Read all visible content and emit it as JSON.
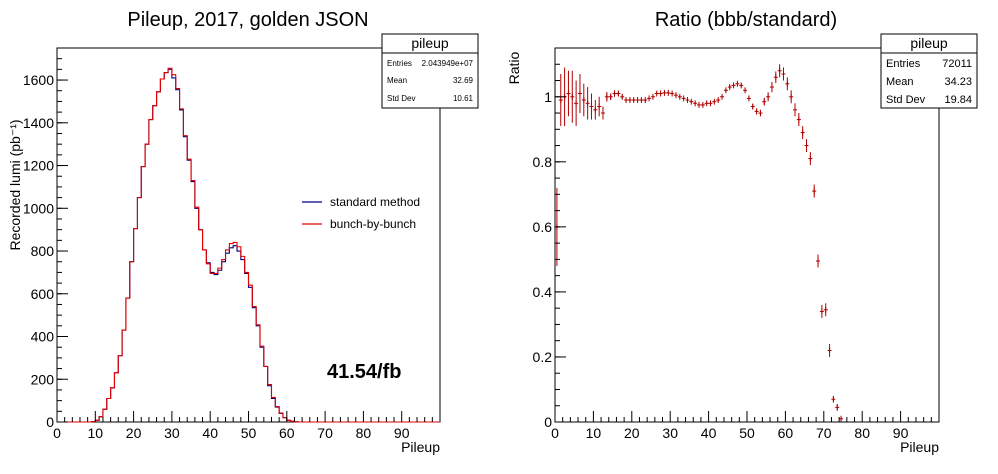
{
  "colors": {
    "standard": "#000080",
    "bbb": "#e00000",
    "ratio": "#b00000",
    "frame": "#000000",
    "background": "#ffffff"
  },
  "chart_data": [
    {
      "type": "histogram",
      "title": "Pileup, 2017, golden JSON",
      "xlabel": "Pileup",
      "ylabel": "Recorded lumi (pb⁻¹)",
      "xlim": [
        0,
        100
      ],
      "ylim": [
        0,
        1750
      ],
      "x_ticks": [
        0,
        10,
        20,
        30,
        40,
        50,
        60,
        70,
        80,
        90
      ],
      "y_ticks": [
        0,
        200,
        400,
        600,
        800,
        1000,
        1200,
        1400,
        1600
      ],
      "bin_width": 1,
      "x_start": 0,
      "series": [
        {
          "name": "standard method",
          "color": "#000080",
          "values": [
            0,
            0,
            0,
            0,
            0,
            0,
            0,
            0,
            0,
            2,
            8,
            25,
            60,
            110,
            160,
            230,
            310,
            430,
            580,
            750,
            905,
            1050,
            1195,
            1300,
            1415,
            1480,
            1545,
            1605,
            1635,
            1650,
            1610,
            1555,
            1460,
            1335,
            1225,
            1125,
            1000,
            900,
            805,
            745,
            700,
            690,
            710,
            750,
            790,
            815,
            825,
            800,
            760,
            695,
            630,
            535,
            450,
            350,
            260,
            170,
            110,
            70,
            40,
            20,
            8,
            3,
            1,
            0,
            0,
            0,
            0,
            0,
            0,
            0,
            0,
            0,
            0,
            0,
            0,
            0,
            0,
            0,
            0,
            0,
            0,
            0,
            0,
            0,
            0,
            0,
            0,
            0,
            0,
            0,
            0,
            0,
            0,
            0,
            0,
            0,
            0,
            0,
            0,
            0
          ]
        },
        {
          "name": "bunch-by-bunch",
          "color": "#e00000",
          "values": [
            0,
            0,
            0,
            0,
            0,
            0,
            0,
            0,
            0,
            2,
            8,
            25,
            60,
            110,
            160,
            230,
            310,
            430,
            580,
            750,
            905,
            1050,
            1195,
            1300,
            1415,
            1480,
            1545,
            1605,
            1635,
            1655,
            1625,
            1560,
            1465,
            1340,
            1230,
            1130,
            1005,
            900,
            805,
            740,
            695,
            695,
            720,
            760,
            805,
            835,
            840,
            820,
            775,
            700,
            640,
            540,
            455,
            355,
            260,
            175,
            115,
            72,
            42,
            20,
            8,
            3,
            1,
            0,
            0,
            0,
            0,
            0,
            0,
            0,
            0,
            0,
            0,
            0,
            0,
            0,
            0,
            0,
            0,
            0,
            0,
            0,
            0,
            0,
            0,
            0,
            0,
            0,
            0,
            0,
            0,
            0,
            0,
            0,
            0,
            0,
            0,
            0,
            0,
            0
          ]
        }
      ],
      "legend": [
        "standard method",
        "bunch-by-bunch"
      ],
      "legend_position": "center-right",
      "annotation": "41.54/fb",
      "stats": {
        "name": "pileup",
        "rows": [
          [
            "Entries",
            "2.043949e+07"
          ],
          [
            "Mean",
            "32.69"
          ],
          [
            "Std Dev",
            "10.61"
          ]
        ]
      }
    },
    {
      "type": "scatter",
      "title": "Ratio (bbb/standard)",
      "xlabel": "Pileup",
      "ylabel": "Ratio",
      "xlim": [
        0,
        100
      ],
      "ylim": [
        0,
        1.15
      ],
      "x_ticks": [
        0,
        10,
        20,
        30,
        40,
        50,
        60,
        70,
        80,
        90
      ],
      "y_ticks": [
        0,
        0.2,
        0.4,
        0.6,
        0.8,
        1
      ],
      "series": [
        {
          "name": "ratio",
          "color": "#b00000",
          "points": [
            {
              "x": 0.5,
              "y": 0.6,
              "err": 0.12
            },
            {
              "x": 1.5,
              "y": 0.99,
              "err": 0.08
            },
            {
              "x": 2.5,
              "y": 1.0,
              "err": 0.09
            },
            {
              "x": 3.5,
              "y": 1.01,
              "err": 0.07
            },
            {
              "x": 4.5,
              "y": 1.0,
              "err": 0.08
            },
            {
              "x": 5.5,
              "y": 0.98,
              "err": 0.07
            },
            {
              "x": 6.5,
              "y": 1.01,
              "err": 0.06
            },
            {
              "x": 7.5,
              "y": 0.99,
              "err": 0.05
            },
            {
              "x": 8.5,
              "y": 0.98,
              "err": 0.05
            },
            {
              "x": 9.5,
              "y": 0.97,
              "err": 0.04
            },
            {
              "x": 10.5,
              "y": 0.96,
              "err": 0.03
            },
            {
              "x": 11.5,
              "y": 0.97,
              "err": 0.03
            },
            {
              "x": 12.5,
              "y": 0.95,
              "err": 0.02
            },
            {
              "x": 13.5,
              "y": 1.0,
              "err": 0.015
            },
            {
              "x": 14.5,
              "y": 1.0,
              "err": 0.01
            },
            {
              "x": 15.5,
              "y": 1.01,
              "err": 0.01
            },
            {
              "x": 16.5,
              "y": 1.01,
              "err": 0.008
            },
            {
              "x": 17.5,
              "y": 1.0,
              "err": 0.006
            },
            {
              "x": 18.5,
              "y": 0.99,
              "err": 0.005
            },
            {
              "x": 19.5,
              "y": 0.99,
              "err": 0.005
            },
            {
              "x": 20.5,
              "y": 0.99,
              "err": 0.004
            },
            {
              "x": 21.5,
              "y": 0.99,
              "err": 0.004
            },
            {
              "x": 22.5,
              "y": 0.99,
              "err": 0.004
            },
            {
              "x": 23.5,
              "y": 0.99,
              "err": 0.004
            },
            {
              "x": 24.5,
              "y": 0.995,
              "err": 0.004
            },
            {
              "x": 25.5,
              "y": 1.0,
              "err": 0.004
            },
            {
              "x": 26.5,
              "y": 1.01,
              "err": 0.004
            },
            {
              "x": 27.5,
              "y": 1.01,
              "err": 0.004
            },
            {
              "x": 28.5,
              "y": 1.012,
              "err": 0.004
            },
            {
              "x": 29.5,
              "y": 1.012,
              "err": 0.004
            },
            {
              "x": 30.5,
              "y": 1.01,
              "err": 0.004
            },
            {
              "x": 31.5,
              "y": 1.005,
              "err": 0.004
            },
            {
              "x": 32.5,
              "y": 1.0,
              "err": 0.004
            },
            {
              "x": 33.5,
              "y": 0.995,
              "err": 0.004
            },
            {
              "x": 34.5,
              "y": 0.99,
              "err": 0.004
            },
            {
              "x": 35.5,
              "y": 0.985,
              "err": 0.004
            },
            {
              "x": 36.5,
              "y": 0.98,
              "err": 0.004
            },
            {
              "x": 37.5,
              "y": 0.975,
              "err": 0.004
            },
            {
              "x": 38.5,
              "y": 0.975,
              "err": 0.004
            },
            {
              "x": 39.5,
              "y": 0.98,
              "err": 0.004
            },
            {
              "x": 40.5,
              "y": 0.98,
              "err": 0.004
            },
            {
              "x": 41.5,
              "y": 0.985,
              "err": 0.004
            },
            {
              "x": 42.5,
              "y": 0.99,
              "err": 0.004
            },
            {
              "x": 43.5,
              "y": 1.0,
              "err": 0.004
            },
            {
              "x": 44.5,
              "y": 1.02,
              "err": 0.005
            },
            {
              "x": 45.5,
              "y": 1.03,
              "err": 0.005
            },
            {
              "x": 46.5,
              "y": 1.035,
              "err": 0.005
            },
            {
              "x": 47.5,
              "y": 1.04,
              "err": 0.005
            },
            {
              "x": 48.5,
              "y": 1.035,
              "err": 0.006
            },
            {
              "x": 49.5,
              "y": 1.02,
              "err": 0.006
            },
            {
              "x": 50.5,
              "y": 0.995,
              "err": 0.007
            },
            {
              "x": 51.5,
              "y": 0.97,
              "err": 0.008
            },
            {
              "x": 52.5,
              "y": 0.955,
              "err": 0.009
            },
            {
              "x": 53.5,
              "y": 0.95,
              "err": 0.01
            },
            {
              "x": 54.5,
              "y": 0.985,
              "err": 0.012
            },
            {
              "x": 55.5,
              "y": 1.0,
              "err": 0.014
            },
            {
              "x": 56.5,
              "y": 1.03,
              "err": 0.016
            },
            {
              "x": 57.5,
              "y": 1.06,
              "err": 0.018
            },
            {
              "x": 58.5,
              "y": 1.08,
              "err": 0.02
            },
            {
              "x": 59.5,
              "y": 1.07,
              "err": 0.02
            },
            {
              "x": 60.5,
              "y": 1.04,
              "err": 0.02
            },
            {
              "x": 61.5,
              "y": 1.0,
              "err": 0.02
            },
            {
              "x": 62.5,
              "y": 0.96,
              "err": 0.02
            },
            {
              "x": 63.5,
              "y": 0.93,
              "err": 0.02
            },
            {
              "x": 64.5,
              "y": 0.89,
              "err": 0.02
            },
            {
              "x": 65.5,
              "y": 0.85,
              "err": 0.02
            },
            {
              "x": 66.5,
              "y": 0.81,
              "err": 0.02
            },
            {
              "x": 67.5,
              "y": 0.71,
              "err": 0.02
            },
            {
              "x": 68.5,
              "y": 0.495,
              "err": 0.02
            },
            {
              "x": 69.5,
              "y": 0.34,
              "err": 0.02
            },
            {
              "x": 70.5,
              "y": 0.345,
              "err": 0.02
            },
            {
              "x": 71.5,
              "y": 0.22,
              "err": 0.02
            },
            {
              "x": 72.5,
              "y": 0.07,
              "err": 0.01
            },
            {
              "x": 73.5,
              "y": 0.045,
              "err": 0.01
            },
            {
              "x": 74.5,
              "y": 0.01,
              "err": 0.005
            }
          ]
        }
      ],
      "stats": {
        "name": "pileup",
        "rows": [
          [
            "Entries",
            "72011"
          ],
          [
            "Mean",
            "34.23"
          ],
          [
            "Std Dev",
            "19.84"
          ]
        ]
      }
    }
  ]
}
